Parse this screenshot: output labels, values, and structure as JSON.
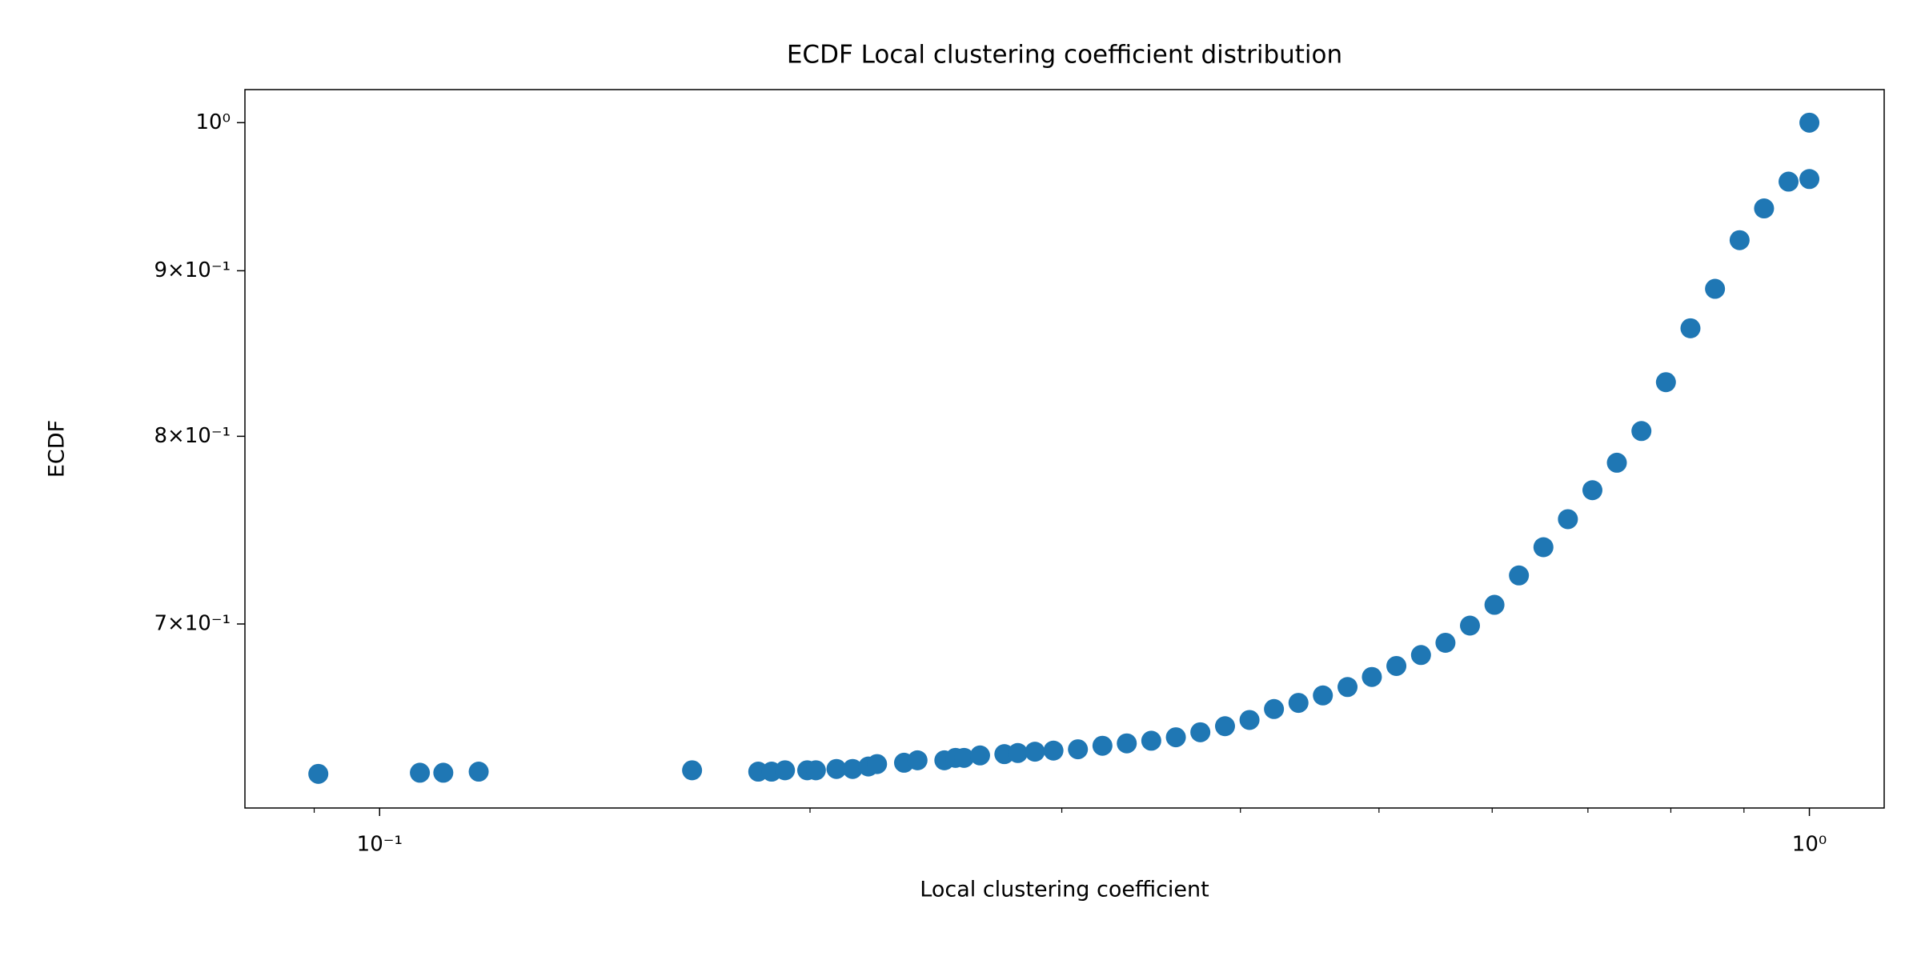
{
  "chart_data": {
    "type": "scatter",
    "title": "ECDF Local clustering coefficient distribution",
    "xlabel": "Local clustering coefficient",
    "ylabel": "ECDF",
    "xscale": "log",
    "yscale": "log",
    "color": "#1f77b4",
    "x": [
      0.0906,
      0.1067,
      0.1108,
      0.1173,
      0.1654,
      0.184,
      0.188,
      0.1921,
      0.1991,
      0.2019,
      0.2087,
      0.2142,
      0.2197,
      0.2228,
      0.2327,
      0.2378,
      0.2483,
      0.2528,
      0.2563,
      0.263,
      0.2735,
      0.2795,
      0.2873,
      0.296,
      0.3079,
      0.3203,
      0.3331,
      0.3465,
      0.3605,
      0.375,
      0.3902,
      0.4059,
      0.4222,
      0.4392,
      0.4568,
      0.4753,
      0.4943,
      0.5142,
      0.535,
      0.5565,
      0.5789,
      0.6022,
      0.6264,
      0.6516,
      0.6778,
      0.7051,
      0.7334,
      0.763,
      0.7937,
      0.8257,
      0.859,
      0.8937,
      0.9296,
      0.967,
      1.0,
      1.0
    ],
    "values": [
      0.6292,
      0.6297,
      0.6297,
      0.6302,
      0.6308,
      0.6302,
      0.6302,
      0.6308,
      0.6308,
      0.6308,
      0.6314,
      0.6314,
      0.6325,
      0.6336,
      0.6342,
      0.6353,
      0.6353,
      0.6364,
      0.6364,
      0.6375,
      0.6381,
      0.6386,
      0.6392,
      0.6397,
      0.6403,
      0.6419,
      0.643,
      0.6442,
      0.6458,
      0.6481,
      0.6509,
      0.6538,
      0.6589,
      0.6618,
      0.6653,
      0.6693,
      0.6741,
      0.6794,
      0.6847,
      0.6907,
      0.6992,
      0.7096,
      0.7246,
      0.7393,
      0.7542,
      0.7699,
      0.7851,
      0.803,
      0.8314,
      0.8639,
      0.8885,
      0.9198,
      0.9408,
      0.9589,
      0.9607,
      1.0
    ],
    "xlim": [
      0.0805,
      1.128
    ],
    "ylim": [
      0.6141,
      1.0238
    ],
    "xticks": [
      {
        "value": 0.1,
        "label": "10⁻¹"
      },
      {
        "value": 1,
        "label": "10⁰"
      }
    ],
    "xminorticks": [
      0.09,
      0.2,
      0.3,
      0.4,
      0.5,
      0.6,
      0.7,
      0.8,
      0.9
    ],
    "yticks": [
      {
        "value": 0.7,
        "label": "7×10⁻¹"
      },
      {
        "value": 0.8,
        "label": "8×10⁻¹"
      },
      {
        "value": 0.9,
        "label": "9×10⁻¹"
      },
      {
        "value": 1,
        "label": "10⁰"
      }
    ]
  }
}
